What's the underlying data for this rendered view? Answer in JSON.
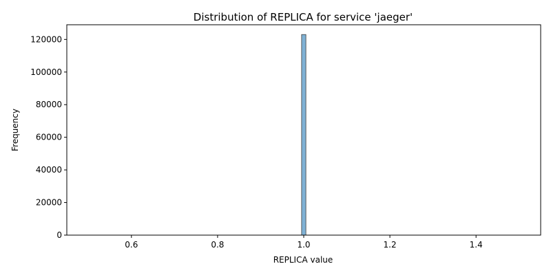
{
  "chart_data": {
    "type": "bar",
    "title": "Distribution of REPLICA for service 'jaeger'",
    "xlabel": "REPLICA value",
    "ylabel": "Frequency",
    "xlim": [
      0.45,
      1.55
    ],
    "ylim": [
      0,
      129000
    ],
    "xticks": [
      "0.6",
      "0.8",
      "1.0",
      "1.2",
      "1.4"
    ],
    "yticks": [
      "0",
      "20000",
      "40000",
      "60000",
      "80000",
      "100000",
      "120000"
    ],
    "bins": [
      {
        "x0": 0.995,
        "x1": 1.005,
        "value": 123000
      }
    ],
    "bar_color": "#7fb2d5",
    "bar_edge_color": "#3a3a3a",
    "grid": false,
    "legend": "none"
  }
}
